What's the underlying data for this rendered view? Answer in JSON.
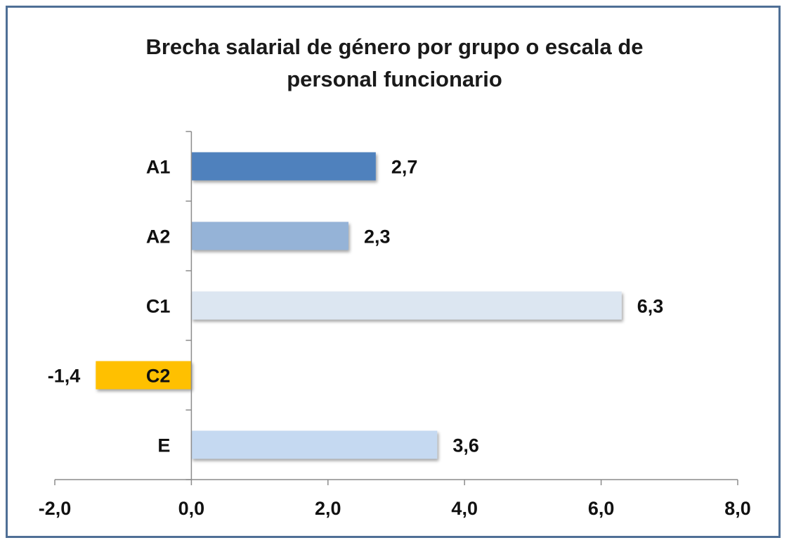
{
  "chart_data": {
    "type": "bar",
    "orientation": "horizontal",
    "title_line1": "Brecha salarial de género por grupo o escala de",
    "title_line2": "personal funcionario",
    "categories": [
      "A1",
      "A2",
      "C1",
      "C2",
      "E"
    ],
    "values": [
      2.7,
      2.3,
      6.3,
      -1.4,
      3.6
    ],
    "value_labels": [
      "2,7",
      "2,3",
      "6,3",
      "-1,4",
      "3,6"
    ],
    "colors": [
      "#4f81bd",
      "#95b3d7",
      "#dce6f1",
      "#ffc000",
      "#c5d9f1"
    ],
    "xlim": [
      -2,
      8
    ],
    "x_ticks": [
      -2,
      0,
      2,
      4,
      6,
      8
    ],
    "x_tick_labels": [
      "-2,0",
      "0,0",
      "2,0",
      "4,0",
      "6,0",
      "8,0"
    ],
    "xlabel": "",
    "ylabel": "",
    "grid": false,
    "legend": "none"
  }
}
